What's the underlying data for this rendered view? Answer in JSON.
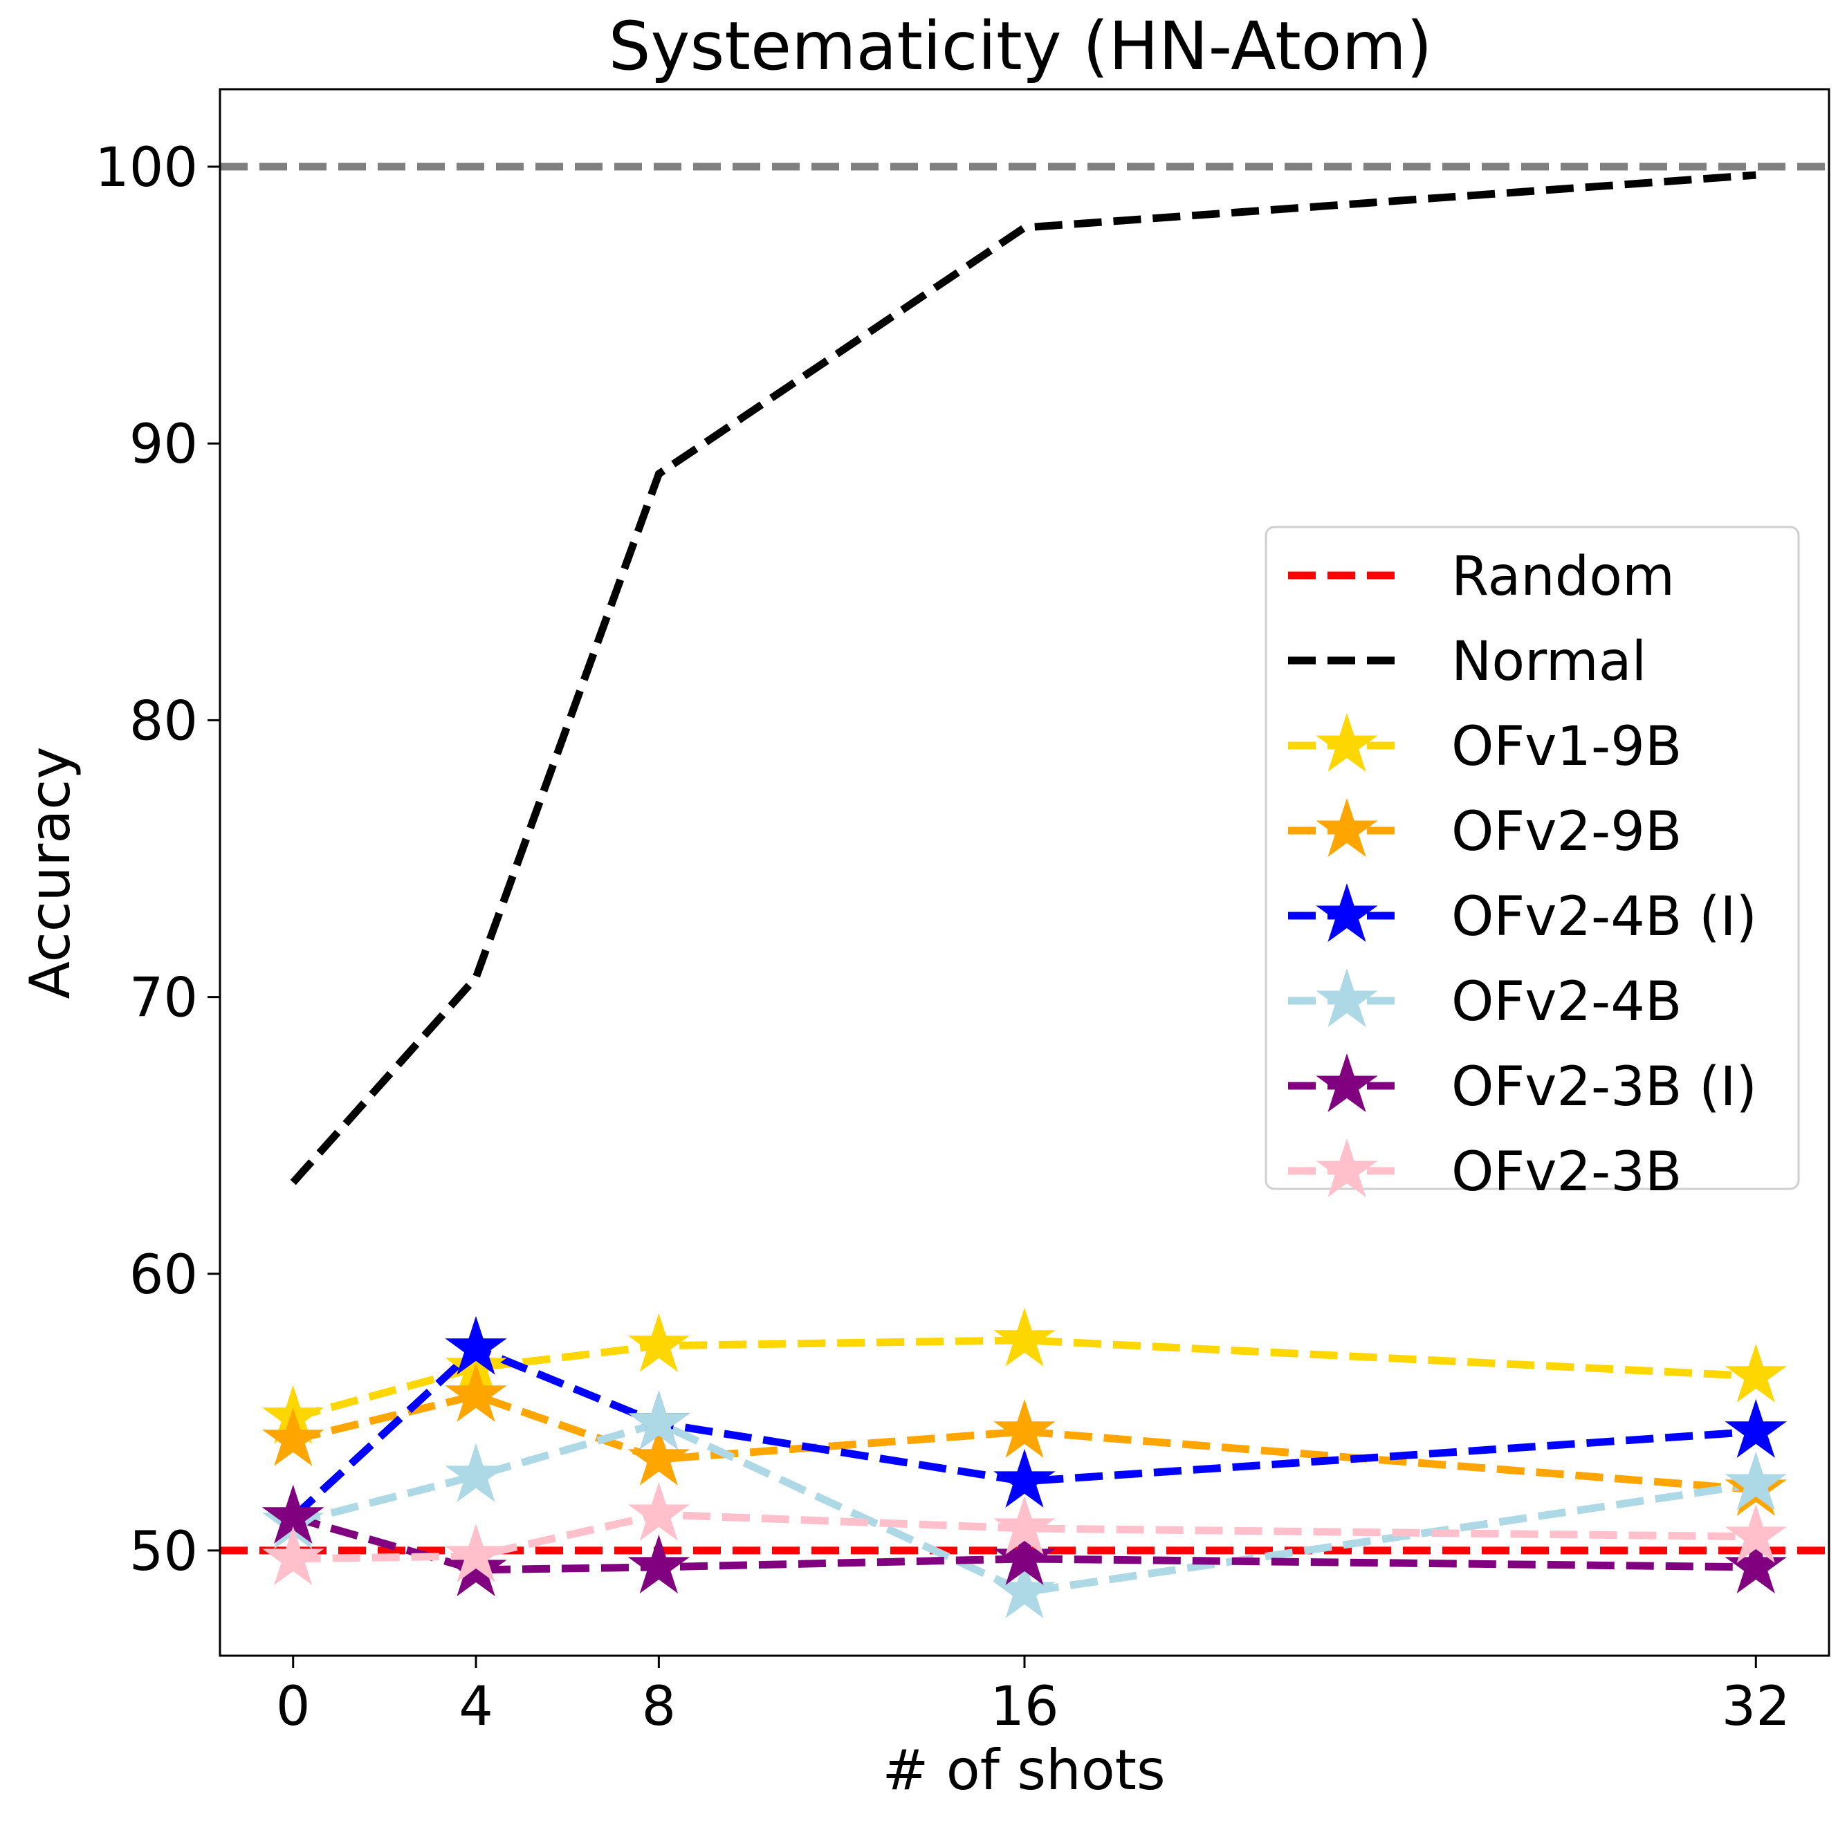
{
  "chart_data": {
    "type": "line",
    "title": "Systematicity (HN-Atom)",
    "xlabel": "# of shots",
    "ylabel": "Accuracy",
    "x": [
      0,
      4,
      8,
      16,
      32
    ],
    "xticks": [
      "0",
      "4",
      "8",
      "16",
      "32"
    ],
    "yticks": [
      "50",
      "60",
      "70",
      "80",
      "90",
      "100"
    ],
    "xlim": [
      -1.6,
      33.6
    ],
    "ylim": [
      46.2,
      102.8
    ],
    "grid": false,
    "legend_position": "center-right",
    "reference_lines": [
      {
        "name": "Random",
        "value": 50,
        "color": "#ff0000"
      },
      {
        "name": "",
        "value": 100,
        "color": "#808080"
      }
    ],
    "series": [
      {
        "name": "Normal",
        "color": "#000000",
        "marker": "none",
        "values": [
          63.3,
          70.7,
          88.9,
          97.8,
          99.7
        ]
      },
      {
        "name": "OFv1-9B",
        "color": "#ffd700",
        "marker": "star",
        "values": [
          54.8,
          56.6,
          57.4,
          57.6,
          56.3
        ]
      },
      {
        "name": "OFv2-9B",
        "color": "#ffa500",
        "marker": "star",
        "values": [
          54.0,
          55.6,
          53.3,
          54.3,
          52.2
        ]
      },
      {
        "name": "OFv2-4B (I)",
        "color": "#0000ff",
        "marker": "star",
        "values": [
          51.2,
          57.3,
          54.6,
          52.5,
          54.3
        ]
      },
      {
        "name": "OFv2-4B",
        "color": "#add8e6",
        "marker": "star",
        "values": [
          51.0,
          52.7,
          54.6,
          48.5,
          52.4
        ]
      },
      {
        "name": "OFv2-3B (I)",
        "color": "#800080",
        "marker": "star",
        "values": [
          51.2,
          49.3,
          49.4,
          49.7,
          49.4
        ]
      },
      {
        "name": "OFv2-3B",
        "color": "#ffc0cb",
        "marker": "star",
        "values": [
          49.7,
          49.8,
          51.3,
          50.8,
          50.5
        ]
      }
    ],
    "legend": [
      "Random",
      "Normal",
      "OFv1-9B",
      "OFv2-9B",
      "OFv2-4B (I)",
      "OFv2-4B",
      "OFv2-3B (I)",
      "OFv2-3B"
    ]
  }
}
